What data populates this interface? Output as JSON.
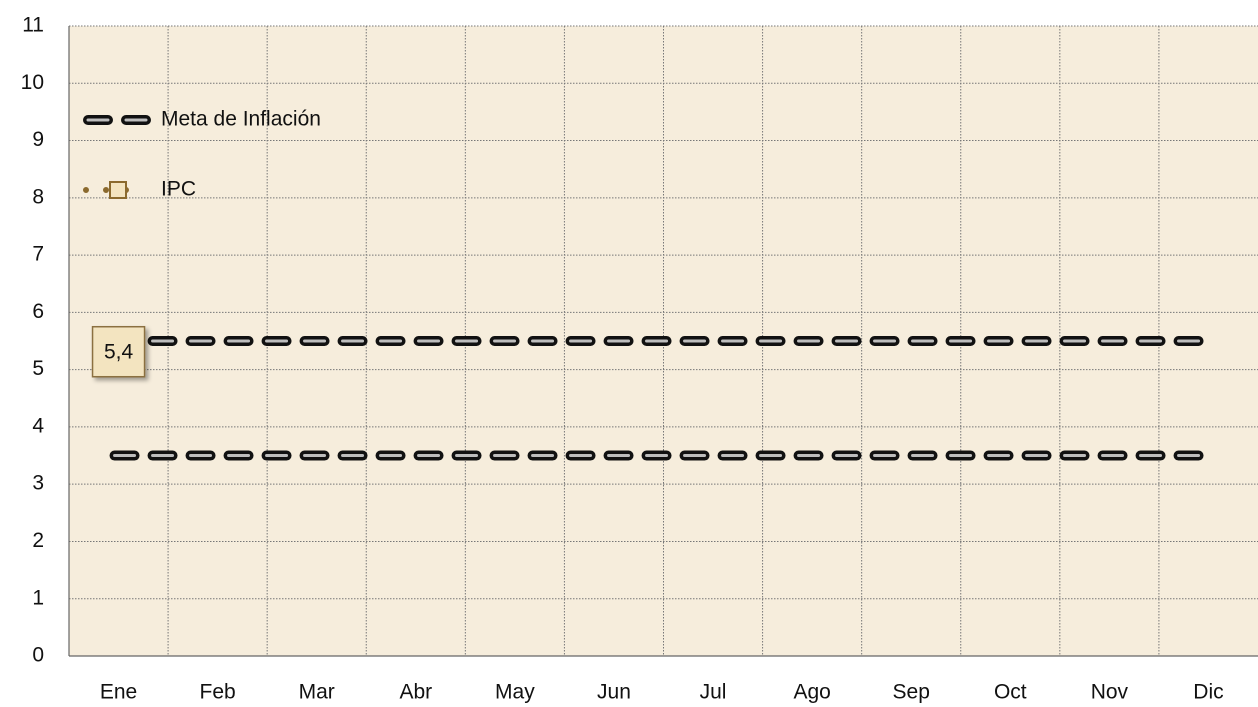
{
  "chart_data": {
    "type": "line",
    "categories": [
      "Ene",
      "Feb",
      "Mar",
      "Abr",
      "May",
      "Jun",
      "Jul",
      "Ago",
      "Sep",
      "Oct",
      "Nov",
      "Dic"
    ],
    "series": [
      {
        "name": "Meta de Inflación",
        "color": "#111111",
        "values": [
          5.5,
          5.5,
          5.5,
          5.5,
          5.5,
          5.5,
          5.5,
          5.5,
          5.5,
          5.5,
          5.5,
          5.5
        ],
        "lower": [
          3.5,
          3.5,
          3.5,
          3.5,
          3.5,
          3.5,
          3.5,
          3.5,
          3.5,
          3.5,
          3.5,
          3.5
        ]
      },
      {
        "name": "IPC",
        "color": "#8b6a2e",
        "values": [
          5.4,
          null,
          null,
          null,
          null,
          null,
          null,
          null,
          null,
          null,
          null,
          null
        ],
        "value_labels": [
          "5,4",
          null,
          null,
          null,
          null,
          null,
          null,
          null,
          null,
          null,
          null,
          null
        ]
      }
    ],
    "ylim": [
      0,
      11
    ],
    "yticks": [
      0,
      1,
      2,
      3,
      4,
      5,
      6,
      7,
      8,
      9,
      10,
      11
    ],
    "grid": true,
    "legend": "upper left",
    "background": "#f6eddc"
  }
}
